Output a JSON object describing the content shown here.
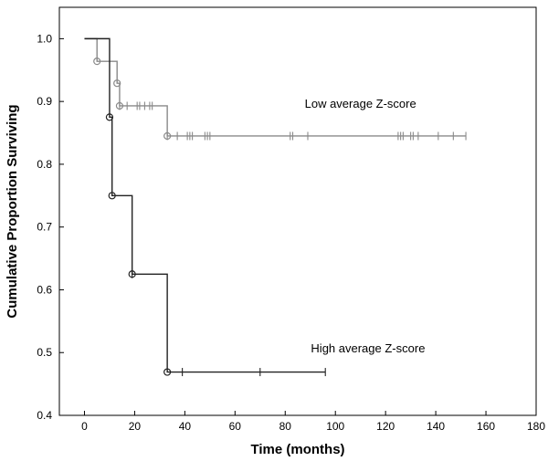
{
  "chart_data": {
    "type": "line",
    "title": "",
    "xlabel": "Time (months)",
    "ylabel": "Cumulative Proportion Surviving",
    "xlim": [
      -10,
      180
    ],
    "ylim": [
      0.4,
      1.05
    ],
    "xticks": [
      "0",
      "20",
      "40",
      "60",
      "80",
      "100",
      "120",
      "140",
      "160",
      "180"
    ],
    "yticks": [
      "0.4",
      "0.5",
      "0.6",
      "0.7",
      "0.8",
      "0.9",
      "1.0"
    ],
    "grid": false,
    "legend": "none",
    "series": [
      {
        "name": "Low average Z-score",
        "color": "#8a8a8a",
        "steps": [
          [
            0,
            1.0
          ],
          [
            5,
            0.964
          ],
          [
            13,
            0.929
          ],
          [
            14,
            0.893
          ],
          [
            33,
            0.845
          ],
          [
            152,
            0.845
          ]
        ],
        "events": [
          [
            5,
            0.964
          ],
          [
            13,
            0.929
          ],
          [
            14,
            0.893
          ],
          [
            33,
            0.845
          ]
        ],
        "censored": [
          [
            14,
            0.893
          ],
          [
            17,
            0.893
          ],
          [
            21,
            0.893
          ],
          [
            22,
            0.893
          ],
          [
            24,
            0.893
          ],
          [
            26,
            0.893
          ],
          [
            27,
            0.893
          ],
          [
            33,
            0.845
          ],
          [
            37,
            0.845
          ],
          [
            41,
            0.845
          ],
          [
            42,
            0.845
          ],
          [
            43,
            0.845
          ],
          [
            48,
            0.845
          ],
          [
            49,
            0.845
          ],
          [
            50,
            0.845
          ],
          [
            82,
            0.845
          ],
          [
            83,
            0.845
          ],
          [
            89,
            0.845
          ],
          [
            125,
            0.845
          ],
          [
            126,
            0.845
          ],
          [
            127,
            0.845
          ],
          [
            130,
            0.845
          ],
          [
            131,
            0.845
          ],
          [
            133,
            0.845
          ],
          [
            141,
            0.845
          ],
          [
            147,
            0.845
          ],
          [
            152,
            0.845
          ]
        ]
      },
      {
        "name": "High average Z-score",
        "color": "#222222",
        "steps": [
          [
            0,
            1.0
          ],
          [
            10,
            0.875
          ],
          [
            11,
            0.75
          ],
          [
            19,
            0.625
          ],
          [
            33,
            0.469
          ],
          [
            96,
            0.469
          ]
        ],
        "events": [
          [
            10,
            0.875
          ],
          [
            11,
            0.75
          ],
          [
            19,
            0.625
          ],
          [
            33,
            0.469
          ]
        ],
        "censored": [
          [
            19,
            0.625
          ],
          [
            39,
            0.469
          ],
          [
            70,
            0.469
          ],
          [
            96,
            0.469
          ]
        ]
      }
    ],
    "annotations": [
      {
        "text": "Low average Z-score",
        "x": 110,
        "y": 0.89
      },
      {
        "text": "High average Z-score",
        "x": 113,
        "y": 0.5
      }
    ]
  }
}
